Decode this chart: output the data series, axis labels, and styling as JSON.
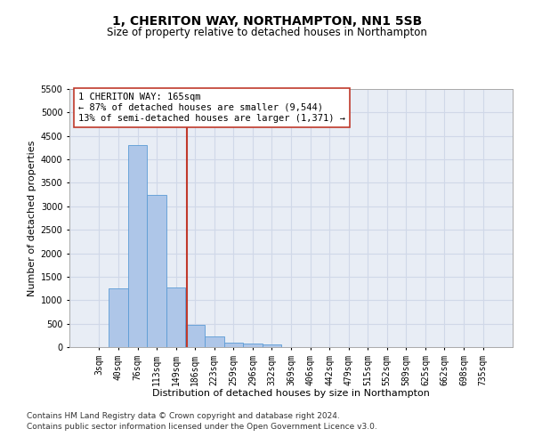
{
  "title": "1, CHERITON WAY, NORTHAMPTON, NN1 5SB",
  "subtitle": "Size of property relative to detached houses in Northampton",
  "xlabel": "Distribution of detached houses by size in Northampton",
  "ylabel": "Number of detached properties",
  "footnote1": "Contains HM Land Registry data © Crown copyright and database right 2024.",
  "footnote2": "Contains public sector information licensed under the Open Government Licence v3.0.",
  "annotation_line1": "1 CHERITON WAY: 165sqm",
  "annotation_line2": "← 87% of detached houses are smaller (9,544)",
  "annotation_line3": "13% of semi-detached houses are larger (1,371) →",
  "bar_color": "#aec6e8",
  "bar_edge_color": "#5b9bd5",
  "vline_color": "#c0392b",
  "vline_x_index": 4.55,
  "categories": [
    "3sqm",
    "40sqm",
    "76sqm",
    "113sqm",
    "149sqm",
    "186sqm",
    "223sqm",
    "259sqm",
    "296sqm",
    "332sqm",
    "369sqm",
    "406sqm",
    "442sqm",
    "479sqm",
    "515sqm",
    "552sqm",
    "589sqm",
    "625sqm",
    "662sqm",
    "698sqm",
    "735sqm"
  ],
  "values": [
    0,
    1250,
    4300,
    3250,
    1280,
    480,
    220,
    100,
    70,
    50,
    0,
    0,
    0,
    0,
    0,
    0,
    0,
    0,
    0,
    0,
    0
  ],
  "ylim": [
    0,
    5500
  ],
  "yticks": [
    0,
    500,
    1000,
    1500,
    2000,
    2500,
    3000,
    3500,
    4000,
    4500,
    5000,
    5500
  ],
  "grid_color": "#d0d8e8",
  "bg_color": "#e8edf5",
  "title_fontsize": 10,
  "subtitle_fontsize": 8.5,
  "axis_label_fontsize": 8,
  "tick_fontsize": 7,
  "annotation_fontsize": 7.5,
  "footnote_fontsize": 6.5
}
